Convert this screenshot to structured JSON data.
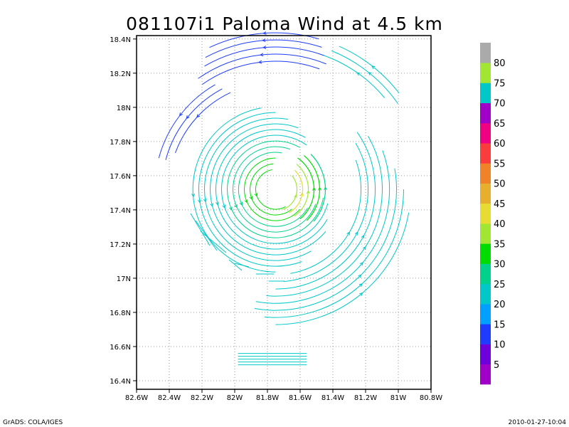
{
  "title": "081107i1 Paloma Wind at 4.5 km",
  "footer": {
    "left": "GrADS: COLA/IGES",
    "right": "2010-01-27-10:04"
  },
  "chart_data": {
    "type": "vector_streamline_map",
    "title": "081107i1 Paloma Wind at 4.5 km",
    "xlim": [
      -82.6,
      -80.8
    ],
    "ylim": [
      16.35,
      18.42
    ],
    "x_ticks": [
      {
        "value": -82.6,
        "label": "82.6W"
      },
      {
        "value": -82.4,
        "label": "82.4W"
      },
      {
        "value": -82.2,
        "label": "82.2W"
      },
      {
        "value": -82.0,
        "label": "82W"
      },
      {
        "value": -81.8,
        "label": "81.8W"
      },
      {
        "value": -81.6,
        "label": "81.6W"
      },
      {
        "value": -81.4,
        "label": "81.4W"
      },
      {
        "value": -81.2,
        "label": "81.2W"
      },
      {
        "value": -81.0,
        "label": "81W"
      },
      {
        "value": -80.8,
        "label": "80.8W"
      }
    ],
    "y_ticks": [
      {
        "value": 16.4,
        "label": "16.4N"
      },
      {
        "value": 16.6,
        "label": "16.6N"
      },
      {
        "value": 16.8,
        "label": "16.8N"
      },
      {
        "value": 17.0,
        "label": "17N"
      },
      {
        "value": 17.2,
        "label": "17.2N"
      },
      {
        "value": 17.4,
        "label": "17.4N"
      },
      {
        "value": 17.6,
        "label": "17.6N"
      },
      {
        "value": 17.8,
        "label": "17.8N"
      },
      {
        "value": 18.0,
        "label": "18N"
      },
      {
        "value": 18.2,
        "label": "18.2N"
      },
      {
        "value": 18.4,
        "label": "18.4N"
      }
    ],
    "grid": true,
    "colorbar": {
      "placement": "right",
      "segments": [
        {
          "color": "#a000c8"
        },
        {
          "color": "#6e00dc"
        },
        {
          "color": "#1e3cff"
        },
        {
          "color": "#00a0ff"
        },
        {
          "color": "#00c8c8"
        },
        {
          "color": "#00d28c"
        },
        {
          "color": "#00dc00"
        },
        {
          "color": "#a0e632"
        },
        {
          "color": "#e6dc32"
        },
        {
          "color": "#e6af2d"
        },
        {
          "color": "#f08228"
        },
        {
          "color": "#fa3c3c"
        },
        {
          "color": "#f00082"
        },
        {
          "color": "#a000c8"
        },
        {
          "color": "#00c8c8"
        },
        {
          "color": "#a0e632"
        },
        {
          "color": "#aaaaaa"
        }
      ],
      "labels": [
        "5",
        "10",
        "15",
        "20",
        "25",
        "30",
        "35",
        "40",
        "45",
        "50",
        "55",
        "60",
        "65",
        "70",
        "75",
        "80"
      ]
    },
    "storm_center": {
      "lon": -81.75,
      "lat": 17.52
    },
    "wind_speed_regions": [
      {
        "region": "north arc",
        "speed_class": "10-15 kt",
        "color": "#1e3cff"
      },
      {
        "region": "outer rings",
        "speed_class": "20-30 kt",
        "color": "#00c8c8"
      },
      {
        "region": "inner core east",
        "speed_class": "35-45 kt",
        "color": "#00dc00"
      },
      {
        "region": "south bands",
        "speed_class": "20-25 kt",
        "color": "#00c8c8"
      }
    ]
  }
}
